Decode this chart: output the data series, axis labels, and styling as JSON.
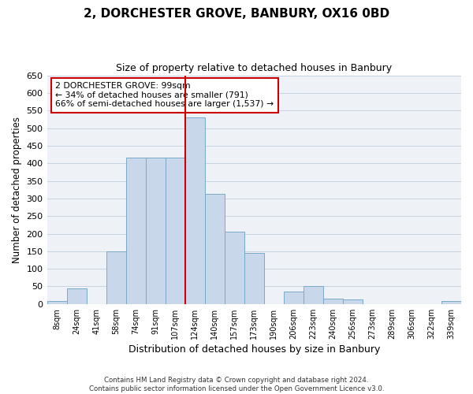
{
  "title": "2, DORCHESTER GROVE, BANBURY, OX16 0BD",
  "subtitle": "Size of property relative to detached houses in Banbury",
  "xlabel": "Distribution of detached houses by size in Banbury",
  "ylabel": "Number of detached properties",
  "bar_labels": [
    "8sqm",
    "24sqm",
    "41sqm",
    "58sqm",
    "74sqm",
    "91sqm",
    "107sqm",
    "124sqm",
    "140sqm",
    "157sqm",
    "173sqm",
    "190sqm",
    "206sqm",
    "223sqm",
    "240sqm",
    "256sqm",
    "273sqm",
    "289sqm",
    "306sqm",
    "322sqm",
    "339sqm"
  ],
  "bar_values": [
    8,
    45,
    0,
    150,
    415,
    415,
    415,
    530,
    313,
    205,
    145,
    0,
    35,
    50,
    15,
    13,
    0,
    0,
    0,
    0,
    8
  ],
  "bar_color": "#c8d8ea",
  "bar_edge_color": "#7aaac8",
  "ylim": [
    0,
    650
  ],
  "yticks": [
    0,
    50,
    100,
    150,
    200,
    250,
    300,
    350,
    400,
    450,
    500,
    550,
    600,
    650
  ],
  "property_line_color": "#cc0000",
  "annotation_box_text": "2 DORCHESTER GROVE: 99sqm\n← 34% of detached houses are smaller (791)\n66% of semi-detached houses are larger (1,537) →",
  "annotation_box_color": "#cc0000",
  "footer_line1": "Contains HM Land Registry data © Crown copyright and database right 2024.",
  "footer_line2": "Contains public sector information licensed under the Open Government Licence v3.0.",
  "grid_color": "#c8d4e0",
  "background_color": "#eef2f7"
}
